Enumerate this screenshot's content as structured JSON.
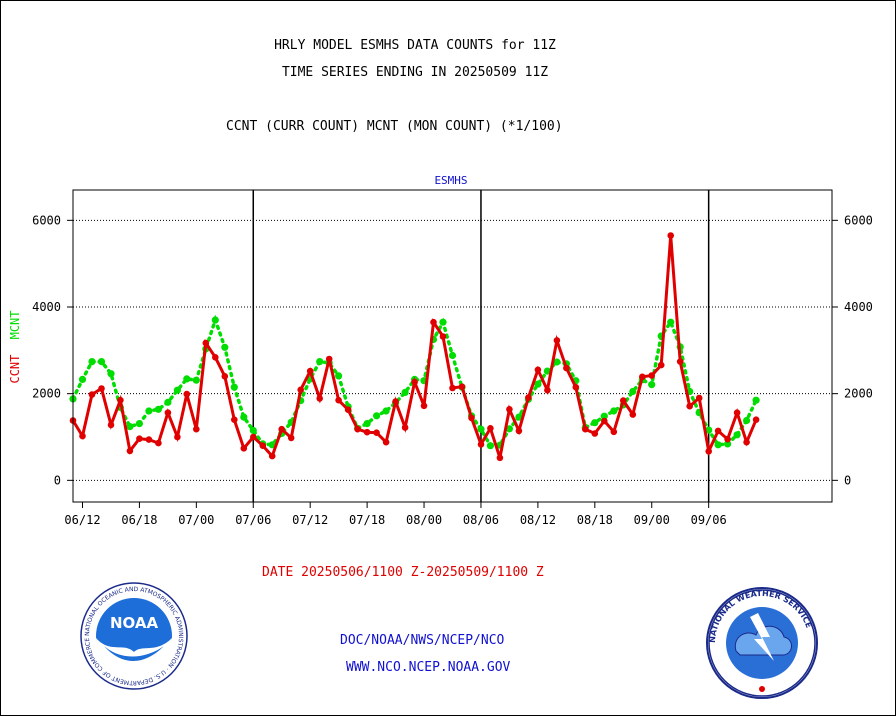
{
  "header": {
    "title_line1": "HRLY MODEL ESMHS DATA COUNTS for 11Z",
    "title_line2": "TIME SERIES ENDING IN 20250509 11Z",
    "subtitle": "CCNT (CURR COUNT) MCNT (MON COUNT) (*1/100)"
  },
  "footer": {
    "date_range": "DATE 20250506/1100 Z-20250509/1100 Z",
    "org": "DOC/NOAA/NWS/NCEP/NCO",
    "url": "WWW.NCO.NCEP.NOAA.GOV"
  },
  "logos": {
    "noaa_text": "NOAA",
    "noaa_ring": "NATIONAL OCEANIC AND ATMOSPHERIC ADMINISTRATION · U.S. DEPARTMENT OF COMMERCE",
    "nws_ring": "NATIONAL WEATHER SERVICE"
  },
  "colors": {
    "ccnt": "#e00000",
    "mcnt": "#00dd00",
    "chart_title": "#1010d0",
    "axis": "#000000"
  },
  "chart_data": {
    "type": "line",
    "title": "ESMHS",
    "ylabel_parts": [
      {
        "text": "CCNT",
        "color": "#e00000"
      },
      {
        "text": "MCNT",
        "color": "#00dd00"
      }
    ],
    "ylim": [
      -500,
      6700
    ],
    "yticks": [
      0,
      2000,
      4000,
      6000
    ],
    "grid": "horizontal dotted",
    "x_index_range": [
      0,
      80
    ],
    "xticks": [
      {
        "label": "06/12",
        "index": 1
      },
      {
        "label": "06/18",
        "index": 7
      },
      {
        "label": "07/00",
        "index": 13
      },
      {
        "label": "07/06",
        "index": 19
      },
      {
        "label": "07/12",
        "index": 25
      },
      {
        "label": "07/18",
        "index": 31
      },
      {
        "label": "08/00",
        "index": 37
      },
      {
        "label": "08/06",
        "index": 43
      },
      {
        "label": "08/12",
        "index": 49
      },
      {
        "label": "08/18",
        "index": 55
      },
      {
        "label": "09/00",
        "index": 61
      },
      {
        "label": "09/06",
        "index": 67
      }
    ],
    "day_boundaries": [
      19,
      43,
      67
    ],
    "series": [
      {
        "name": "CCNT",
        "color": "#e00000",
        "style": "solid",
        "values": [
          1380,
          1020,
          1980,
          2120,
          1280,
          1850,
          680,
          960,
          940,
          860,
          1560,
          1000,
          1990,
          1180,
          3170,
          2840,
          2400,
          1400,
          740,
          1000,
          800,
          560,
          1180,
          980,
          2090,
          2520,
          1890,
          2800,
          1850,
          1630,
          1180,
          1110,
          1100,
          880,
          1820,
          1220,
          2270,
          1720,
          3650,
          3320,
          2130,
          2160,
          1440,
          830,
          1200,
          520,
          1640,
          1140,
          1910,
          2550,
          2080,
          3230,
          2590,
          2150,
          1180,
          1080,
          1370,
          1120,
          1840,
          1520,
          2390,
          2420,
          2660,
          5650,
          2740,
          1710,
          1900,
          670,
          1140,
          950,
          1560,
          880,
          1400
        ]
      },
      {
        "name": "MCNT",
        "color": "#00dd00",
        "style": "dotted",
        "values": [
          1880,
          2330,
          2740,
          2740,
          2460,
          1680,
          1240,
          1310,
          1600,
          1640,
          1800,
          2080,
          2340,
          2310,
          3030,
          3700,
          3070,
          2150,
          1460,
          1150,
          840,
          820,
          1080,
          1340,
          1840,
          2340,
          2740,
          2710,
          2410,
          1700,
          1200,
          1310,
          1490,
          1600,
          1790,
          2030,
          2330,
          2300,
          3250,
          3650,
          2880,
          2150,
          1490,
          1180,
          800,
          810,
          1190,
          1460,
          1870,
          2220,
          2520,
          2730,
          2690,
          2300,
          1220,
          1330,
          1480,
          1600,
          1740,
          2050,
          2320,
          2210,
          3330,
          3650,
          3080,
          2050,
          1560,
          1160,
          820,
          840,
          1050,
          1380,
          1850
        ]
      }
    ]
  }
}
